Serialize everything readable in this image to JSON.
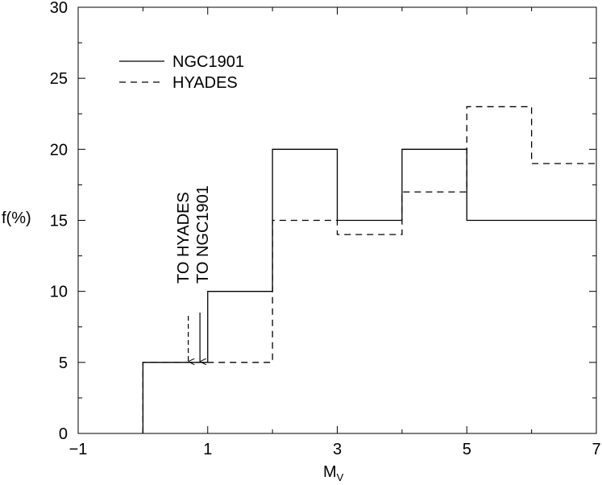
{
  "chart_data": {
    "type": "line",
    "step": true,
    "xlabel": "M",
    "xlabel_subscript": "V",
    "ylabel": "f(%)",
    "xlim": [
      -1,
      7
    ],
    "ylim": [
      0,
      30
    ],
    "x_ticks": [
      -1,
      1,
      3,
      5,
      7
    ],
    "x_tick_labels": [
      "−1",
      "1",
      "3",
      "5",
      "7"
    ],
    "y_ticks": [
      0,
      5,
      10,
      15,
      20,
      25,
      30
    ],
    "y_tick_labels": [
      "0",
      "5",
      "10",
      "15",
      "20",
      "25",
      "30"
    ],
    "grid": false,
    "legend_position": "top-left",
    "series": [
      {
        "name": "NGC1901",
        "style": "solid",
        "x": [
          0,
          1,
          2,
          3,
          4,
          5,
          6
        ],
        "values": [
          5,
          10,
          20,
          15,
          20,
          15,
          15
        ]
      },
      {
        "name": "HYADES",
        "style": "dashed",
        "x": [
          0,
          1,
          2,
          3,
          4,
          5,
          6
        ],
        "values": [
          5,
          5,
          15,
          14,
          17,
          23,
          19
        ]
      }
    ],
    "annotations": [
      {
        "text": "TO HYADES",
        "x": 0.7,
        "style": "dashed"
      },
      {
        "text": "TO NGC1901",
        "x": 0.88,
        "style": "solid"
      }
    ]
  }
}
